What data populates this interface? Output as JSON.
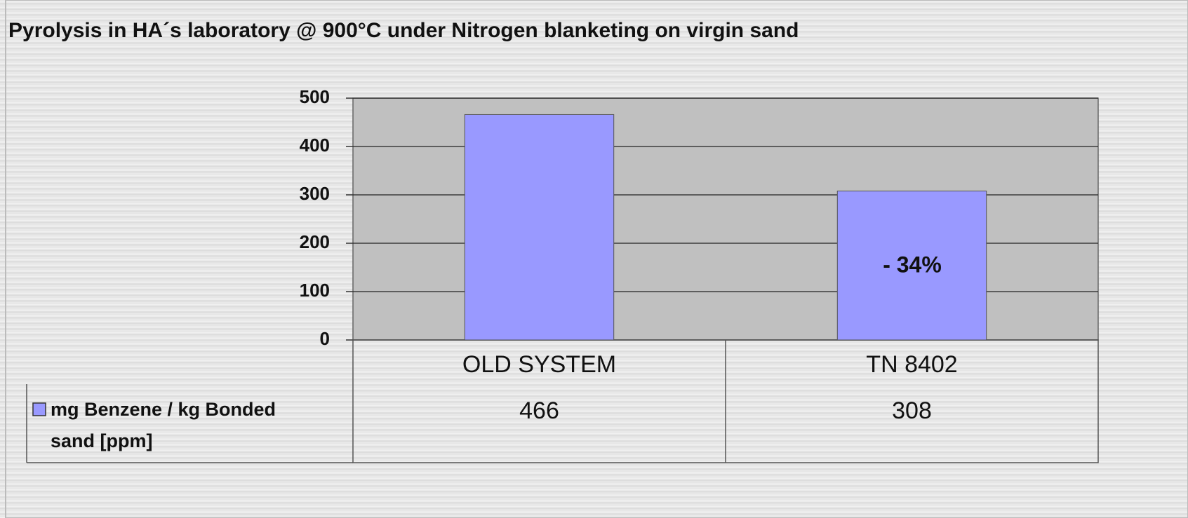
{
  "chart_data": {
    "type": "bar",
    "title": "Pyrolysis in HA´s laboratory @ 900°C under Nitrogen blanketing on virgin sand",
    "categories": [
      "OLD SYSTEM",
      "TN 8402"
    ],
    "series": [
      {
        "name": "mg Benzene / kg Bonded sand [ppm]",
        "color": "#9999ff",
        "values": [
          466,
          308
        ]
      }
    ],
    "ylim": [
      0,
      500
    ],
    "yticks": [
      0,
      100,
      200,
      300,
      400,
      500
    ],
    "grid": true,
    "annotation": "- 34%"
  }
}
